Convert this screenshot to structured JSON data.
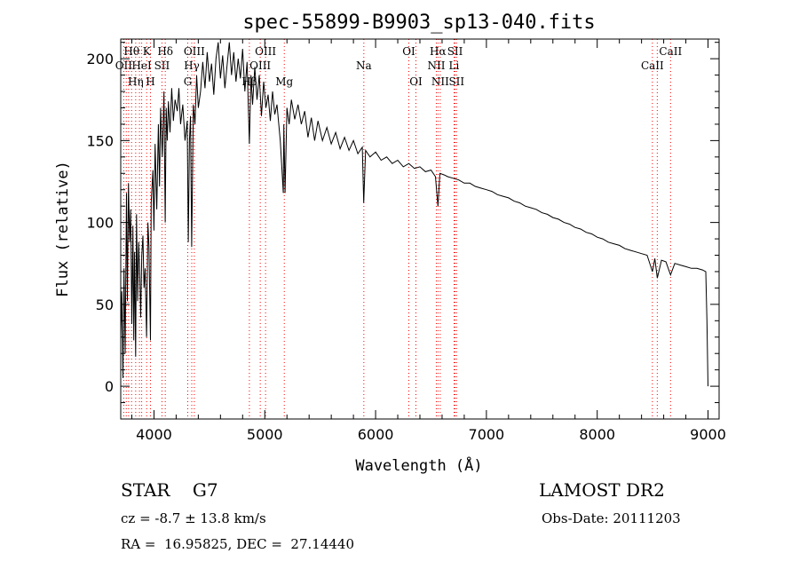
{
  "info": {
    "object_class": "STAR    G7",
    "survey": "LAMOST DR2",
    "cz": "cz = -8.7 ± 13.8 km/s",
    "obs_date": "Obs-Date: 20111203",
    "radec": "RA =  16.95825, DEC =  27.14440"
  },
  "chart_data": {
    "type": "line",
    "title": "spec-55899-B9903_sp13-040.fits",
    "xlabel": "Wavelength (Å)",
    "ylabel": "Flux (relative)",
    "xlim": [
      3700,
      9100
    ],
    "ylim": [
      -20,
      212
    ],
    "xticks": [
      4000,
      5000,
      6000,
      7000,
      8000,
      9000
    ],
    "yticks": [
      0,
      50,
      100,
      150,
      200
    ],
    "series": [
      {
        "values": [
          [
            3700,
            30
          ],
          [
            3710,
            58
          ],
          [
            3720,
            5
          ],
          [
            3730,
            72
          ],
          [
            3740,
            20
          ],
          [
            3752,
            118
          ],
          [
            3760,
            52
          ],
          [
            3770,
            124
          ],
          [
            3780,
            88
          ],
          [
            3790,
            108
          ],
          [
            3800,
            38
          ],
          [
            3810,
            98
          ],
          [
            3818,
            28
          ],
          [
            3825,
            82
          ],
          [
            3835,
            18
          ],
          [
            3843,
            105
          ],
          [
            3852,
            52
          ],
          [
            3862,
            88
          ],
          [
            3872,
            66
          ],
          [
            3880,
            42
          ],
          [
            3890,
            80
          ],
          [
            3900,
            92
          ],
          [
            3910,
            60
          ],
          [
            3920,
            72
          ],
          [
            3933,
            30
          ],
          [
            3945,
            100
          ],
          [
            3955,
            85
          ],
          [
            3968,
            28
          ],
          [
            3975,
            112
          ],
          [
            3990,
            132
          ],
          [
            4000,
            95
          ],
          [
            4010,
            148
          ],
          [
            4025,
            108
          ],
          [
            4040,
            160
          ],
          [
            4050,
            122
          ],
          [
            4060,
            170
          ],
          [
            4075,
            140
          ],
          [
            4090,
            180
          ],
          [
            4101,
            100
          ],
          [
            4110,
            170
          ],
          [
            4120,
            150
          ],
          [
            4130,
            174
          ],
          [
            4145,
            155
          ],
          [
            4160,
            182
          ],
          [
            4175,
            162
          ],
          [
            4190,
            175
          ],
          [
            4210,
            168
          ],
          [
            4225,
            182
          ],
          [
            4240,
            160
          ],
          [
            4260,
            172
          ],
          [
            4280,
            150
          ],
          [
            4300,
            162
          ],
          [
            4310,
            88
          ],
          [
            4320,
            150
          ],
          [
            4330,
            165
          ],
          [
            4340,
            85
          ],
          [
            4355,
            172
          ],
          [
            4370,
            160
          ],
          [
            4385,
            190
          ],
          [
            4400,
            170
          ],
          [
            4420,
            180
          ],
          [
            4440,
            198
          ],
          [
            4460,
            182
          ],
          [
            4480,
            204
          ],
          [
            4500,
            186
          ],
          [
            4520,
            197
          ],
          [
            4540,
            178
          ],
          [
            4560,
            200
          ],
          [
            4580,
            210
          ],
          [
            4600,
            188
          ],
          [
            4620,
            202
          ],
          [
            4640,
            182
          ],
          [
            4660,
            196
          ],
          [
            4680,
            210
          ],
          [
            4700,
            190
          ],
          [
            4720,
            204
          ],
          [
            4740,
            186
          ],
          [
            4760,
            200
          ],
          [
            4780,
            188
          ],
          [
            4800,
            206
          ],
          [
            4820,
            180
          ],
          [
            4840,
            198
          ],
          [
            4861,
            148
          ],
          [
            4875,
            190
          ],
          [
            4890,
            172
          ],
          [
            4910,
            195
          ],
          [
            4930,
            175
          ],
          [
            4950,
            190
          ],
          [
            4970,
            165
          ],
          [
            4990,
            186
          ],
          [
            5010,
            170
          ],
          [
            5030,
            178
          ],
          [
            5050,
            162
          ],
          [
            5070,
            180
          ],
          [
            5090,
            166
          ],
          [
            5110,
            172
          ],
          [
            5140,
            150
          ],
          [
            5167,
            118
          ],
          [
            5172,
            160
          ],
          [
            5183,
            118
          ],
          [
            5200,
            170
          ],
          [
            5220,
            160
          ],
          [
            5240,
            175
          ],
          [
            5270,
            163
          ],
          [
            5300,
            172
          ],
          [
            5330,
            160
          ],
          [
            5360,
            168
          ],
          [
            5390,
            152
          ],
          [
            5420,
            164
          ],
          [
            5450,
            150
          ],
          [
            5480,
            162
          ],
          [
            5520,
            150
          ],
          [
            5560,
            158
          ],
          [
            5600,
            148
          ],
          [
            5640,
            155
          ],
          [
            5680,
            145
          ],
          [
            5720,
            152
          ],
          [
            5760,
            144
          ],
          [
            5800,
            150
          ],
          [
            5840,
            142
          ],
          [
            5880,
            146
          ],
          [
            5893,
            112
          ],
          [
            5910,
            144
          ],
          [
            5950,
            140
          ],
          [
            6000,
            143
          ],
          [
            6050,
            138
          ],
          [
            6100,
            140
          ],
          [
            6150,
            136
          ],
          [
            6200,
            138
          ],
          [
            6250,
            134
          ],
          [
            6300,
            136
          ],
          [
            6350,
            133
          ],
          [
            6400,
            134
          ],
          [
            6450,
            131
          ],
          [
            6500,
            132
          ],
          [
            6540,
            128
          ],
          [
            6563,
            110
          ],
          [
            6580,
            130
          ],
          [
            6620,
            129
          ],
          [
            6650,
            128
          ],
          [
            6700,
            127
          ],
          [
            6750,
            126
          ],
          [
            6800,
            124
          ],
          [
            6850,
            124
          ],
          [
            6900,
            122
          ],
          [
            6950,
            121
          ],
          [
            7000,
            120
          ],
          [
            7050,
            119
          ],
          [
            7100,
            117
          ],
          [
            7150,
            116
          ],
          [
            7200,
            115
          ],
          [
            7250,
            113
          ],
          [
            7300,
            112
          ],
          [
            7350,
            110
          ],
          [
            7400,
            109
          ],
          [
            7450,
            108
          ],
          [
            7500,
            106
          ],
          [
            7550,
            105
          ],
          [
            7600,
            103
          ],
          [
            7650,
            102
          ],
          [
            7700,
            100
          ],
          [
            7750,
            99
          ],
          [
            7800,
            97
          ],
          [
            7850,
            96
          ],
          [
            7900,
            94
          ],
          [
            7950,
            93
          ],
          [
            8000,
            91
          ],
          [
            8050,
            90
          ],
          [
            8100,
            88
          ],
          [
            8150,
            87
          ],
          [
            8200,
            86
          ],
          [
            8250,
            84
          ],
          [
            8300,
            83
          ],
          [
            8350,
            82
          ],
          [
            8400,
            81
          ],
          [
            8450,
            80
          ],
          [
            8498,
            70
          ],
          [
            8520,
            78
          ],
          [
            8542,
            66
          ],
          [
            8580,
            77
          ],
          [
            8620,
            76
          ],
          [
            8662,
            68
          ],
          [
            8700,
            75
          ],
          [
            8750,
            74
          ],
          [
            8800,
            73
          ],
          [
            8850,
            72
          ],
          [
            8900,
            72
          ],
          [
            8950,
            71
          ],
          [
            8980,
            70
          ],
          [
            8990,
            40
          ],
          [
            9000,
            0
          ]
        ]
      }
    ],
    "lines": [
      {
        "wave": 3727,
        "label": "OII",
        "row": 1
      },
      {
        "wave": 3750,
        "label": "",
        "row": 0
      },
      {
        "wave": 3771,
        "label": "",
        "row": 0
      },
      {
        "wave": 3798,
        "label": "Hθ",
        "row": 0
      },
      {
        "wave": 3835,
        "label": "Hη",
        "row": 2
      },
      {
        "wave": 3869,
        "label": "",
        "row": 0
      },
      {
        "wave": 3889,
        "label": "HeI",
        "row": 1
      },
      {
        "wave": 3934,
        "label": "K",
        "row": 0
      },
      {
        "wave": 3968,
        "label": "H",
        "row": 2
      },
      {
        "wave": 4072,
        "label": "SII",
        "row": 1
      },
      {
        "wave": 4102,
        "label": "Hδ",
        "row": 0
      },
      {
        "wave": 4305,
        "label": "G",
        "row": 2
      },
      {
        "wave": 4341,
        "label": "Hγ",
        "row": 1
      },
      {
        "wave": 4364,
        "label": "OIII",
        "row": 0
      },
      {
        "wave": 4861,
        "label": "Hβ",
        "row": 2
      },
      {
        "wave": 4959,
        "label": "OIII",
        "row": 1
      },
      {
        "wave": 5007,
        "label": "OIII",
        "row": 0
      },
      {
        "wave": 5176,
        "label": "Mg",
        "row": 2
      },
      {
        "wave": 5894,
        "label": "Na",
        "row": 1
      },
      {
        "wave": 6300,
        "label": "OI",
        "row": 0
      },
      {
        "wave": 6364,
        "label": "OI",
        "row": 2
      },
      {
        "wave": 6548,
        "label": "NII",
        "row": 1
      },
      {
        "wave": 6563,
        "label": "Hα",
        "row": 0
      },
      {
        "wave": 6583,
        "label": "NII",
        "row": 2
      },
      {
        "wave": 6708,
        "label": "Li",
        "row": 1
      },
      {
        "wave": 6717,
        "label": "SII",
        "row": 0
      },
      {
        "wave": 6731,
        "label": "SII",
        "row": 2
      },
      {
        "wave": 8498,
        "label": "CaII",
        "row": 1
      },
      {
        "wave": 8542,
        "label": "",
        "row": 0
      },
      {
        "wave": 8662,
        "label": "CaII",
        "row": 0
      }
    ],
    "grid": false,
    "colors": {
      "spectrum": "#000000",
      "line_marker": "#ff0000"
    }
  }
}
